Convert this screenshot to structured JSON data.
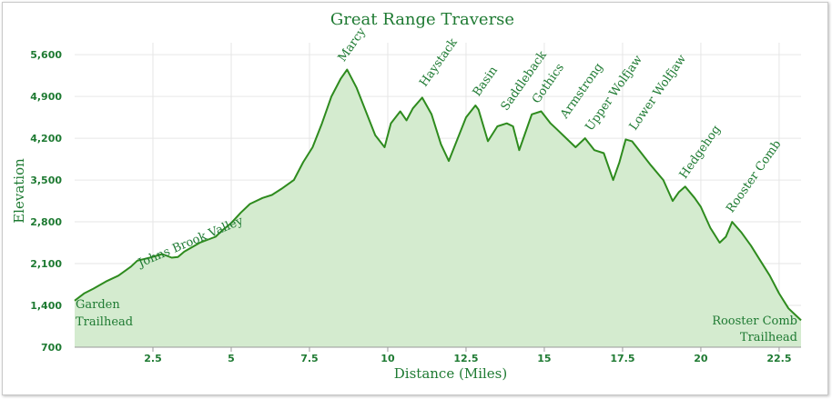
{
  "chart_data": {
    "type": "area",
    "title": "Great Range Traverse",
    "xlabel": "Distance (Miles)",
    "ylabel": "Elevation",
    "xlim": [
      0,
      23.2
    ],
    "ylim": [
      700,
      5800
    ],
    "xticks": [
      2.5,
      5,
      7.5,
      10,
      12.5,
      15,
      17.5,
      20,
      22.5
    ],
    "yticks": [
      700,
      1400,
      2100,
      2800,
      3500,
      4200,
      4900,
      5600
    ],
    "xtick_labels": [
      "2.5",
      "5",
      "7.5",
      "10",
      "12.5",
      "15",
      "17.5",
      "20",
      "22.5"
    ],
    "ytick_labels": [
      "700",
      "1,400",
      "2,100",
      "2,800",
      "3,500",
      "4,200",
      "4,900",
      "5,600"
    ],
    "grid": true,
    "colors": {
      "line": "#2e8b1e",
      "fill": "#d4ebcf",
      "text": "#1e7a32",
      "grid": "#e6e6e6"
    },
    "series": [
      {
        "x": [
          0,
          0.3,
          0.6,
          1.0,
          1.4,
          1.8,
          2.0,
          2.4,
          2.8,
          3.1,
          3.3,
          3.5,
          4.0,
          4.5,
          4.7,
          5.0,
          5.3,
          5.6,
          6.0,
          6.3,
          6.6,
          7.0,
          7.3,
          7.6,
          7.9,
          8.2,
          8.5,
          8.7,
          9.0,
          9.3,
          9.6,
          9.9,
          10.1,
          10.4,
          10.6,
          10.8,
          11.1,
          11.4,
          11.7,
          11.95,
          12.2,
          12.5,
          12.8,
          12.9,
          13.2,
          13.5,
          13.8,
          14.0,
          14.2,
          14.4,
          14.6,
          14.9,
          15.2,
          15.4,
          15.7,
          16.0,
          16.3,
          16.6,
          16.9,
          17.2,
          17.4,
          17.6,
          17.8,
          18.1,
          18.4,
          18.8,
          19.1,
          19.3,
          19.5,
          19.8,
          20.0,
          20.3,
          20.6,
          20.8,
          21.0,
          21.3,
          21.6,
          21.9,
          22.2,
          22.5,
          22.8,
          23.2
        ],
        "y": [
          1480,
          1600,
          1680,
          1800,
          1900,
          2050,
          2150,
          2200,
          2260,
          2200,
          2210,
          2300,
          2450,
          2550,
          2650,
          2780,
          2950,
          3100,
          3200,
          3250,
          3350,
          3500,
          3800,
          4050,
          4450,
          4900,
          5200,
          5350,
          5050,
          4650,
          4250,
          4050,
          4450,
          4650,
          4500,
          4700,
          4880,
          4600,
          4100,
          3820,
          4150,
          4550,
          4750,
          4680,
          4150,
          4400,
          4450,
          4400,
          4000,
          4300,
          4600,
          4650,
          4450,
          4350,
          4200,
          4050,
          4200,
          4000,
          3950,
          3500,
          3800,
          4180,
          4150,
          3950,
          3750,
          3500,
          3150,
          3300,
          3390,
          3200,
          3050,
          2700,
          2450,
          2550,
          2800,
          2620,
          2400,
          2150,
          1900,
          1600,
          1350,
          1150
        ]
      }
    ],
    "annotations": [
      {
        "label": "Marcy",
        "x": 8.6,
        "y": 5380
      },
      {
        "label": "Haystack",
        "x": 11.2,
        "y": 4960
      },
      {
        "label": "Basin",
        "x": 12.9,
        "y": 4800
      },
      {
        "label": "Saddleback",
        "x": 13.8,
        "y": 4560
      },
      {
        "label": "Gothics",
        "x": 14.8,
        "y": 4680
      },
      {
        "label": "Armstrong",
        "x": 15.7,
        "y": 4430
      },
      {
        "label": "Upper Wolfjaw",
        "x": 16.5,
        "y": 4220
      },
      {
        "label": "Lower Wolfjaw",
        "x": 17.9,
        "y": 4230
      },
      {
        "label": "Hedgehog",
        "x": 19.5,
        "y": 3420
      },
      {
        "label": "Rooster Comb",
        "x": 21.0,
        "y": 2850
      },
      {
        "label": "Johns Brook Valley",
        "x": 2.1,
        "y": 1950
      }
    ],
    "endpoints": {
      "start": [
        "Garden",
        "Trailhead"
      ],
      "end": [
        "Rooster Comb",
        "Trailhead"
      ]
    }
  }
}
